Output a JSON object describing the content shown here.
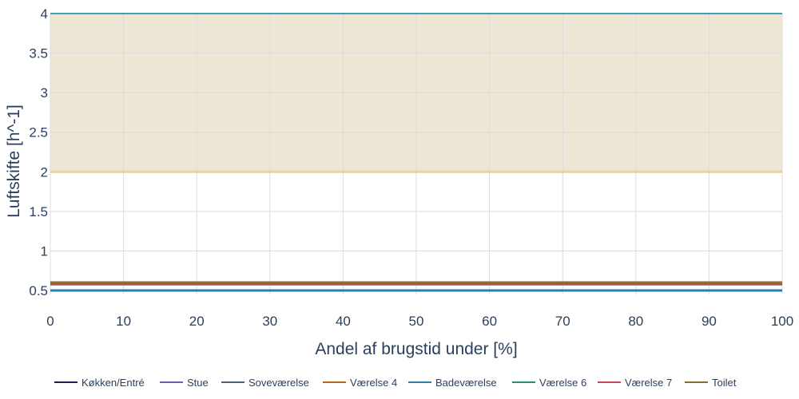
{
  "chart_data": {
    "type": "line",
    "xlabel": "Andel af brugstid under [%]",
    "ylabel": "Luftskifte [h^-1]",
    "xlim": [
      0,
      100
    ],
    "ylim": [
      0.45,
      4.0
    ],
    "x_ticks": [
      0,
      10,
      20,
      30,
      40,
      50,
      60,
      70,
      80,
      90,
      100
    ],
    "x_tick_labels": [
      "0",
      "10",
      "20",
      "30",
      "40",
      "50",
      "60",
      "70",
      "80",
      "90",
      "100"
    ],
    "y_ticks": [
      0.5,
      1,
      1.5,
      2,
      2.5,
      3,
      3.5,
      4
    ],
    "y_tick_labels": [
      "0.5",
      "1",
      "1.5",
      "2",
      "2.5",
      "3",
      "3.5",
      "4"
    ],
    "grid": true,
    "legend_position": "bottom",
    "bands": [
      {
        "y_from": 2.0,
        "y_to": 4.0,
        "fill": "#efe7d5",
        "lower_line_color": "#e7cfa8",
        "upper_line_color": "#3aa3b2"
      }
    ],
    "series": [
      {
        "name": "Køkken/Entré",
        "color": "#1f1f4f",
        "x": [
          0,
          100
        ],
        "y": [
          0.6,
          0.6
        ]
      },
      {
        "name": "Stue",
        "color": "#6b5bb5",
        "x": [
          0,
          100
        ],
        "y": [
          0.6,
          0.6
        ]
      },
      {
        "name": "Soveværelse",
        "color": "#4e5f73",
        "x": [
          0,
          100
        ],
        "y": [
          0.6,
          0.6
        ]
      },
      {
        "name": "Værelse 4",
        "color": "#b5651d",
        "x": [
          0,
          100
        ],
        "y": [
          0.6,
          0.6
        ]
      },
      {
        "name": "Badeværelse",
        "color": "#2d7fa3",
        "x": [
          0,
          100
        ],
        "y": [
          0.5,
          0.5
        ]
      },
      {
        "name": "Værelse 6",
        "color": "#22917a",
        "x": [
          0,
          100
        ],
        "y": [
          0.58,
          0.58
        ]
      },
      {
        "name": "Værelse 7",
        "color": "#c9475a",
        "x": [
          0,
          100
        ],
        "y": [
          0.58,
          0.58
        ]
      },
      {
        "name": "Toilet",
        "color": "#8b6a3a",
        "x": [
          0,
          100
        ],
        "y": [
          0.59,
          0.59
        ]
      }
    ]
  }
}
